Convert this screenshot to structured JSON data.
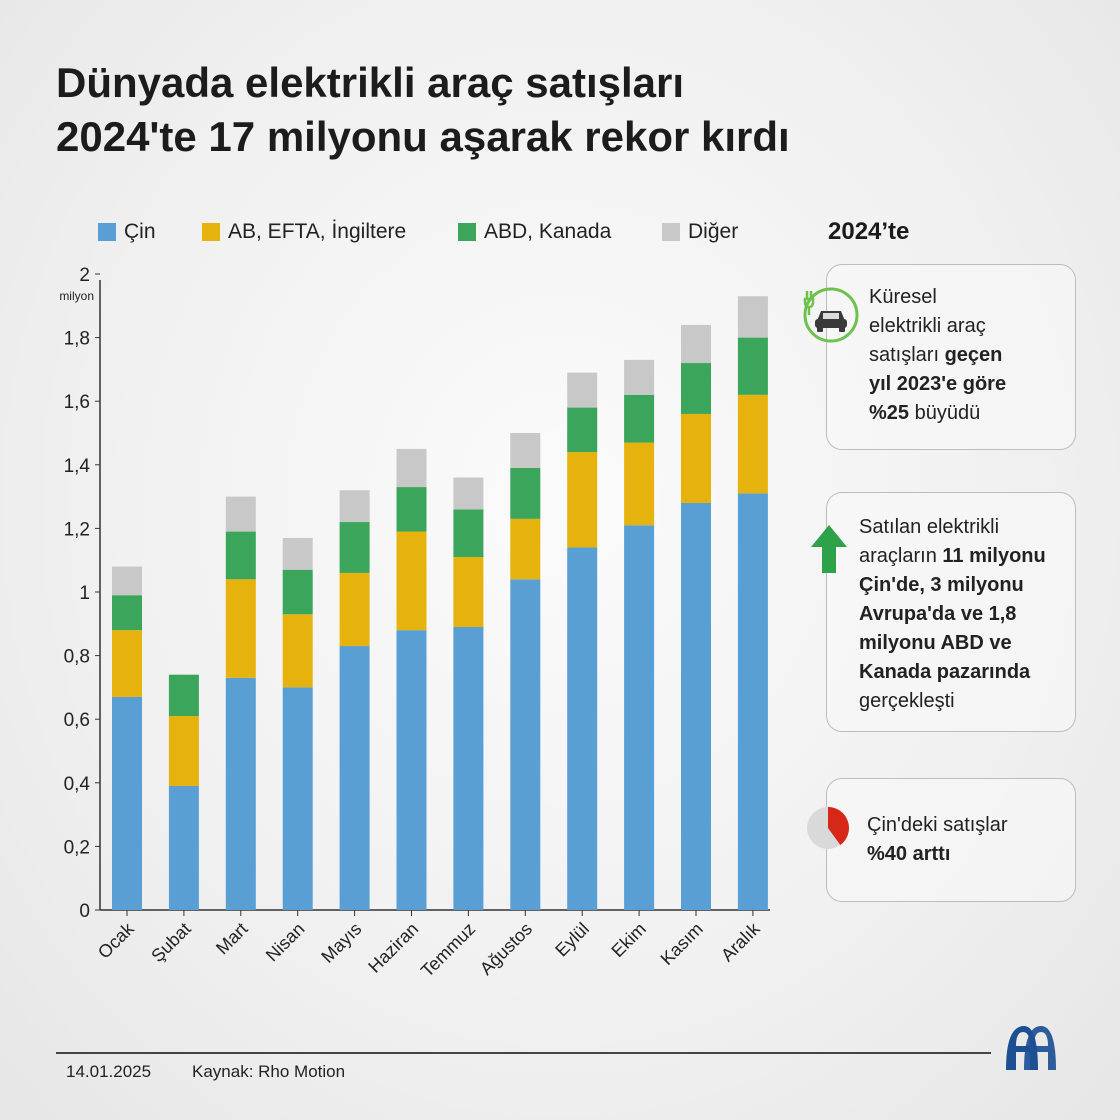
{
  "title": {
    "line1": "Dünyada elektrikli araç satışları",
    "line2": "2024'te 17 milyonu aşarak rekor kırdı"
  },
  "legend": [
    {
      "label": "Çin",
      "color": "#5a9fd4"
    },
    {
      "label": "AB, EFTA, İngiltere",
      "color": "#e6b30e"
    },
    {
      "label": "ABD, Kanada",
      "color": "#3ba55c"
    },
    {
      "label": "Diğer",
      "color": "#c8c8c8"
    }
  ],
  "chart_data": {
    "type": "bar",
    "stacked": true,
    "title": "Dünyada elektrikli araç satışları 2024'te 17 milyonu aşarak rekor kırdı",
    "xlabel": "",
    "ylabel": "milyon",
    "ylim": [
      0,
      2
    ],
    "yticks": [
      {
        "value": 0,
        "label": "0"
      },
      {
        "value": 0.2,
        "label": "0,2"
      },
      {
        "value": 0.4,
        "label": "0,4"
      },
      {
        "value": 0.6,
        "label": "0,6"
      },
      {
        "value": 0.8,
        "label": "0,8"
      },
      {
        "value": 1.0,
        "label": "1"
      },
      {
        "value": 1.2,
        "label": "1,2"
      },
      {
        "value": 1.4,
        "label": "1,4"
      },
      {
        "value": 1.6,
        "label": "1,6"
      },
      {
        "value": 1.8,
        "label": "1,8"
      },
      {
        "value": 2.0,
        "label": "2"
      }
    ],
    "ytick_unit_label": "milyon",
    "categories": [
      "Ocak",
      "Şubat",
      "Mart",
      "Nisan",
      "Mayıs",
      "Haziran",
      "Temmuz",
      "Ağustos",
      "Eylül",
      "Ekim",
      "Kasım",
      "Aralık"
    ],
    "series": [
      {
        "name": "Çin",
        "color": "#5a9fd4",
        "values": [
          0.67,
          0.39,
          0.73,
          0.7,
          0.83,
          0.88,
          0.89,
          1.04,
          1.14,
          1.21,
          1.28,
          1.31
        ]
      },
      {
        "name": "AB, EFTA, İngiltere",
        "color": "#e6b30e",
        "values": [
          0.21,
          0.22,
          0.31,
          0.23,
          0.23,
          0.31,
          0.22,
          0.19,
          0.3,
          0.26,
          0.28,
          0.31
        ]
      },
      {
        "name": "ABD, Kanada",
        "color": "#3ba55c",
        "values": [
          0.11,
          0.13,
          0.15,
          0.14,
          0.16,
          0.14,
          0.15,
          0.16,
          0.14,
          0.15,
          0.16,
          0.18
        ]
      },
      {
        "name": "Diğer",
        "color": "#c8c8c8",
        "values": [
          0.09,
          0.0,
          0.11,
          0.1,
          0.1,
          0.12,
          0.1,
          0.11,
          0.11,
          0.11,
          0.12,
          0.13
        ]
      }
    ]
  },
  "side": {
    "heading": "2024’te",
    "card1": {
      "line1": "Küresel",
      "line2": "elektrikli araç",
      "line3_normal": "satışları ",
      "line3_bold": "geçen",
      "line4_bold": "yıl 2023'e göre",
      "line5_bold": "%25",
      "line5_normal": " büyüdü",
      "icon": "electric-car-icon",
      "icon_color": "#6cc24a"
    },
    "card2": {
      "line1": "Satılan elektrikli",
      "line2_normal": "araçların ",
      "line2_bold": "11 milyonu",
      "line3_bold": "Çin'de, 3 milyonu",
      "line4_bold": "Avrupa'da ve 1,8",
      "line5_bold": "milyonu ABD ve",
      "line6_bold": "Kanada pazarında",
      "line7": "gerçekleşti",
      "icon": "up-arrow-icon",
      "icon_color": "#2ea24a"
    },
    "card3": {
      "line1": "Çin'deki satışlar",
      "line2_bold": "%40 arttı",
      "icon": "pie-icon",
      "pie_share": 0.4,
      "pie_color": "#d62718"
    }
  },
  "footer": {
    "date": "14.01.2025",
    "source": "Kaynak: Rho Motion",
    "logo": "aa-logo-icon",
    "logo_color": "#1c4f93"
  }
}
